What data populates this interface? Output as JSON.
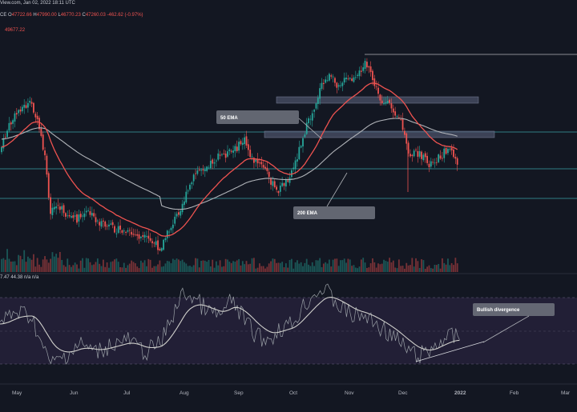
{
  "header": {
    "source_line": "View.com, Jan 02, 2022 18:11 UTC",
    "ohlc": [
      {
        "label": "CE",
        "value": ""
      },
      {
        "label": "O",
        "value": "47722.66"
      },
      {
        "label": "H",
        "value": "47990.00"
      },
      {
        "label": "L",
        "value": "46770.23"
      },
      {
        "label": "C",
        "value": "47260.03"
      },
      {
        "label": "",
        "value": "-462.62 (-0.97%)"
      }
    ],
    "ema_value": "49677.22",
    "rsi_line": "7.47  44.38  n/a  n/a"
  },
  "annotations": {
    "ema50": "50 EMA",
    "ema200": "200 EMA",
    "divergence": "Bullish divergence"
  },
  "time_axis": [
    "May",
    "Jun",
    "Jul",
    "Aug",
    "Sep",
    "Oct",
    "Nov",
    "Dec",
    "2022",
    "Feb",
    "Mar"
  ],
  "colors": {
    "background": "#131722",
    "bull": "#26a69a",
    "bear": "#ef5350",
    "ema50": "#ef5350",
    "ema200": "#b0b3b8",
    "rsi": "#9aa0a6",
    "rsi_band": "#2a2640",
    "level_line": "#3aa0a6",
    "zone": "#4b5268"
  }
}
